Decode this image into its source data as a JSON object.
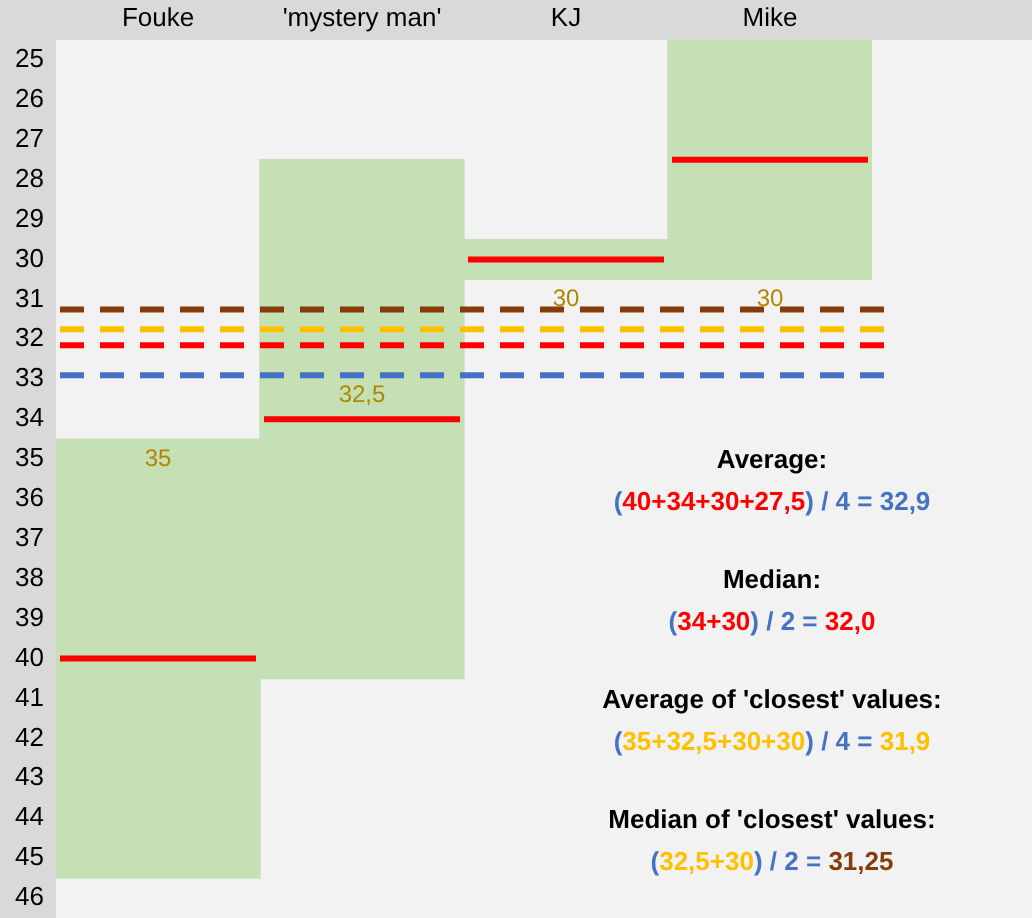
{
  "chart_data": {
    "type": "box",
    "categories": [
      "Fouke",
      "'mystery man'",
      "KJ",
      "Mike"
    ],
    "color": "#c5e0b4",
    "boxes": [
      {
        "low": 34.5,
        "q1": 34.5,
        "median": 40,
        "q3": 45.5,
        "high": 45.5
      },
      {
        "low": 27.5,
        "q1": 27.5,
        "median": 34,
        "q3": 40.5,
        "high": 40.5
      },
      {
        "low": 29.5,
        "q1": 29.5,
        "median": 30,
        "q3": 30.5,
        "high": 30.5
      },
      {
        "low": 24.5,
        "q1": 24.5,
        "median": 27.5,
        "q3": 30.5,
        "high": 30.5
      }
    ],
    "ylim": [
      46.5,
      24.5
    ],
    "yticks": [
      25,
      26,
      27,
      28,
      29,
      30,
      31,
      32,
      33,
      34,
      35,
      36,
      37,
      38,
      39,
      40,
      41,
      42,
      43,
      44,
      45,
      46
    ],
    "ref_lines": [
      {
        "axis": "y",
        "value": 32.9,
        "color": "#4472c4",
        "line_style": "dashed"
      },
      {
        "axis": "y",
        "value": 32.15,
        "color": "#ff0000",
        "line_style": "dashed"
      },
      {
        "axis": "y",
        "value": 31.75,
        "color": "#ffc000",
        "line_style": "dashed"
      },
      {
        "axis": "y",
        "value": 31.25,
        "color": "#843c0c",
        "line_style": "dashed"
      }
    ],
    "annotations": [
      {
        "text": "35",
        "x": "Fouke",
        "y": 34.5
      },
      {
        "text": "32,5",
        "x": "'mystery man'",
        "y": 32.9
      },
      {
        "text": "30",
        "x": "KJ",
        "y": 30.5
      },
      {
        "text": "30",
        "x": "Mike",
        "y": 30.5
      },
      "Average:",
      "(40+34+30+27,5) / 4 = 32,9",
      "Median:",
      "(34+30) / 2 = 32,0",
      "Average of 'closest' values:",
      "(35+32,5+30+30) / 4 = 31,9",
      "Median of 'closest' values:",
      "(32,5+30) / 2 = 31,25"
    ],
    "grid": false,
    "legend": false
  }
}
